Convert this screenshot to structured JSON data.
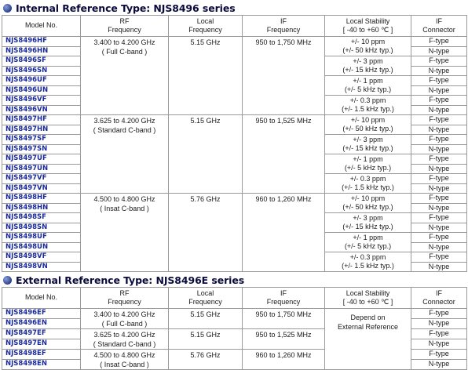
{
  "internal": {
    "title": "Internal Reference Type: NJS8496 series",
    "headers": [
      "Model No.",
      "RF\nFrequency",
      "Local\nFrequency",
      "IF\nFrequency",
      "Local Stability\n[ -40 to +60 ℃ ]",
      "IF\nConnector"
    ],
    "groups": [
      {
        "rf": "3.400 to 4.200 GHz",
        "rf_note": "( Full C-band )",
        "local": "5.15 GHz",
        "if": "950 to 1,750 MHz",
        "models": [
          "NJS8496HF",
          "NJS8496HN",
          "NJS8496SF",
          "NJS8496SN",
          "NJS8496UF",
          "NJS8496UN",
          "NJS8496VF",
          "NJS8496VN"
        ]
      },
      {
        "rf": "3.625 to 4.200 GHz",
        "rf_note": "( Standard C-band )",
        "local": "5.15 GHz",
        "if": "950 to 1,525 MHz",
        "models": [
          "NJS8497HF",
          "NJS8497HN",
          "NJS8497SF",
          "NJS8497SN",
          "NJS8497UF",
          "NJS8497UN",
          "NJS8497VF",
          "NJS8497VN"
        ]
      },
      {
        "rf": "4.500 to 4.800 GHz",
        "rf_note": "( Insat C-band )",
        "local": "5.76 GHz",
        "if": "960 to 1,260 MHz",
        "models": [
          "NJS8498HF",
          "NJS8498HN",
          "NJS8498SF",
          "NJS8498SN",
          "NJS8498UF",
          "NJS8498UN",
          "NJS8498VF",
          "NJS8498VN"
        ]
      }
    ],
    "stability": [
      {
        "main": "+/- 10 ppm",
        "typ": "(+/- 50 kHz typ.)"
      },
      {
        "main": "+/- 3 ppm",
        "typ": "(+/- 15 kHz typ.)"
      },
      {
        "main": "+/- 1 ppm",
        "typ": "(+/- 5 kHz typ.)"
      },
      {
        "main": "+/- 0.3 ppm",
        "typ": "(+/- 1.5 kHz typ.)"
      }
    ],
    "connectors": [
      "F-type",
      "N-type"
    ]
  },
  "external": {
    "title": "External Reference Type: NJS8496E series",
    "headers": [
      "Model No.",
      "RF\nFrequency",
      "Local\nFrequency",
      "IF\nFrequency",
      "Local Stability\n[ -40 to +60 ℃ ]",
      "IF\nConnector"
    ],
    "stability": "Depend on\nExternal Reference",
    "groups": [
      {
        "rf": "3.400 to 4.200 GHz",
        "rf_note": "( Full C-band )",
        "local": "5.15 GHz",
        "if": "950 to 1,750 MHz",
        "models": [
          "NJS8496EF",
          "NJS8496EN"
        ]
      },
      {
        "rf": "3.625 to 4.200 GHz",
        "rf_note": "( Standard C-band )",
        "local": "5.15 GHz",
        "if": "950 to 1,525 MHz",
        "models": [
          "NJS8497EF",
          "NJS8497EN"
        ]
      },
      {
        "rf": "4.500 to 4.800 GHz",
        "rf_note": "( Insat C-band )",
        "local": "5.76 GHz",
        "if": "960 to 1,260 MHz",
        "models": [
          "NJS8498EF",
          "NJS8498EN"
        ]
      }
    ],
    "connectors": [
      "F-type",
      "N-type"
    ]
  }
}
